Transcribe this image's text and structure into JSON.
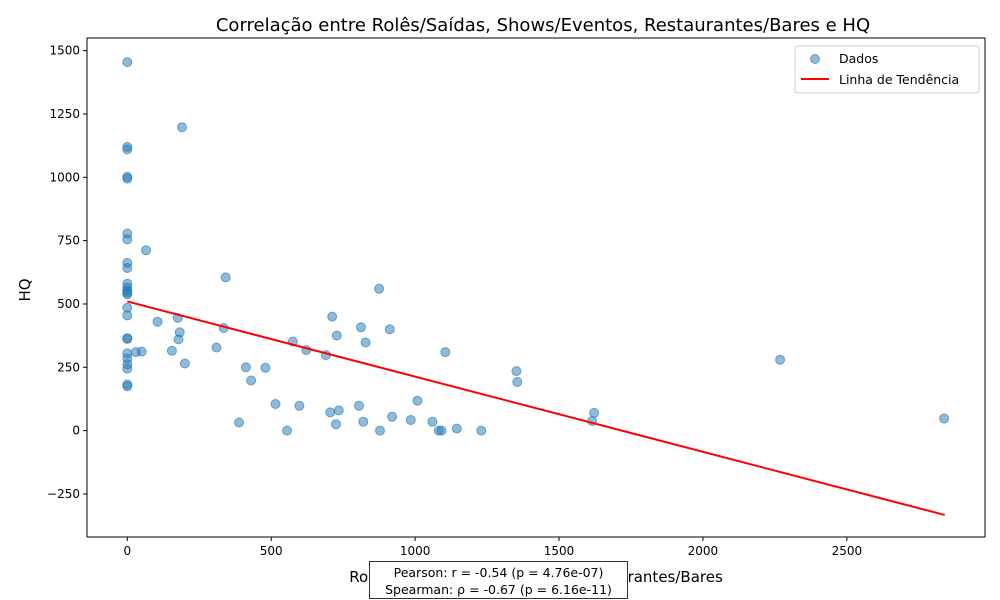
{
  "chart_data": {
    "type": "scatter",
    "title": "Correlação entre Rolês/Saídas, Shows/Eventos, Restaurantes/Bares e HQ",
    "xlabel": "Rolês/Saídas, Shows/Eventos, Restaurantes/Bares",
    "ylabel": "HQ",
    "xlim": [
      -140,
      2980
    ],
    "ylim": [
      -420,
      1550
    ],
    "x_ticks": [
      0,
      500,
      1000,
      1500,
      2000,
      2500
    ],
    "y_ticks": [
      -250,
      0,
      250,
      500,
      750,
      1000,
      1250,
      1500
    ],
    "x_tick_labels": [
      "0",
      "500",
      "1000",
      "1500",
      "2000",
      "2500"
    ],
    "y_tick_labels": [
      "−250",
      "0",
      "250",
      "500",
      "750",
      "1000",
      "1250",
      "1500"
    ],
    "grid": false,
    "legend_position": "top-right",
    "legend": [
      {
        "label": "Dados",
        "kind": "marker"
      },
      {
        "label": "Linha de Tendência",
        "kind": "line"
      }
    ],
    "colors": {
      "points": "#1f77b4",
      "trend": "#ff0000"
    },
    "points": [
      {
        "x": 0,
        "y": 1455
      },
      {
        "x": 0,
        "y": 1120
      },
      {
        "x": 0,
        "y": 1110
      },
      {
        "x": 0,
        "y": 1002
      },
      {
        "x": 0,
        "y": 995
      },
      {
        "x": 0,
        "y": 778
      },
      {
        "x": 0,
        "y": 755
      },
      {
        "x": 0,
        "y": 662
      },
      {
        "x": 0,
        "y": 642
      },
      {
        "x": 0,
        "y": 580
      },
      {
        "x": 0,
        "y": 565
      },
      {
        "x": 0,
        "y": 552
      },
      {
        "x": 0,
        "y": 545
      },
      {
        "x": 0,
        "y": 538
      },
      {
        "x": 0,
        "y": 485
      },
      {
        "x": 0,
        "y": 455
      },
      {
        "x": 0,
        "y": 365
      },
      {
        "x": 0,
        "y": 362
      },
      {
        "x": 0,
        "y": 305
      },
      {
        "x": 0,
        "y": 285
      },
      {
        "x": 0,
        "y": 262
      },
      {
        "x": 0,
        "y": 245
      },
      {
        "x": 0,
        "y": 182
      },
      {
        "x": 0,
        "y": 175
      },
      {
        "x": 30,
        "y": 310
      },
      {
        "x": 50,
        "y": 312
      },
      {
        "x": 65,
        "y": 712
      },
      {
        "x": 105,
        "y": 430
      },
      {
        "x": 155,
        "y": 315
      },
      {
        "x": 175,
        "y": 445
      },
      {
        "x": 178,
        "y": 360
      },
      {
        "x": 182,
        "y": 388
      },
      {
        "x": 190,
        "y": 1198
      },
      {
        "x": 200,
        "y": 265
      },
      {
        "x": 310,
        "y": 328
      },
      {
        "x": 335,
        "y": 405
      },
      {
        "x": 342,
        "y": 605
      },
      {
        "x": 388,
        "y": 32
      },
      {
        "x": 412,
        "y": 250
      },
      {
        "x": 430,
        "y": 198
      },
      {
        "x": 480,
        "y": 248
      },
      {
        "x": 515,
        "y": 105
      },
      {
        "x": 555,
        "y": 0
      },
      {
        "x": 575,
        "y": 352
      },
      {
        "x": 598,
        "y": 98
      },
      {
        "x": 622,
        "y": 318
      },
      {
        "x": 690,
        "y": 298
      },
      {
        "x": 705,
        "y": 72
      },
      {
        "x": 712,
        "y": 450
      },
      {
        "x": 725,
        "y": 25
      },
      {
        "x": 728,
        "y": 375
      },
      {
        "x": 735,
        "y": 80
      },
      {
        "x": 805,
        "y": 98
      },
      {
        "x": 812,
        "y": 408
      },
      {
        "x": 820,
        "y": 35
      },
      {
        "x": 828,
        "y": 348
      },
      {
        "x": 875,
        "y": 560
      },
      {
        "x": 878,
        "y": 0
      },
      {
        "x": 912,
        "y": 400
      },
      {
        "x": 920,
        "y": 55
      },
      {
        "x": 985,
        "y": 42
      },
      {
        "x": 1008,
        "y": 118
      },
      {
        "x": 1060,
        "y": 35
      },
      {
        "x": 1082,
        "y": 0
      },
      {
        "x": 1092,
        "y": 0
      },
      {
        "x": 1105,
        "y": 310
      },
      {
        "x": 1145,
        "y": 8
      },
      {
        "x": 1230,
        "y": 0
      },
      {
        "x": 1352,
        "y": 235
      },
      {
        "x": 1355,
        "y": 192
      },
      {
        "x": 1615,
        "y": 38
      },
      {
        "x": 1622,
        "y": 70
      },
      {
        "x": 2268,
        "y": 280
      },
      {
        "x": 2838,
        "y": 48
      }
    ],
    "trend_line": {
      "x": [
        0,
        2840
      ],
      "y": [
        510,
        -333
      ]
    },
    "annotation_lines": [
      "Pearson: r = -0.54 (p = 4.76e-07)",
      "Spearman: ρ = -0.67 (p = 6.16e-11)"
    ]
  }
}
